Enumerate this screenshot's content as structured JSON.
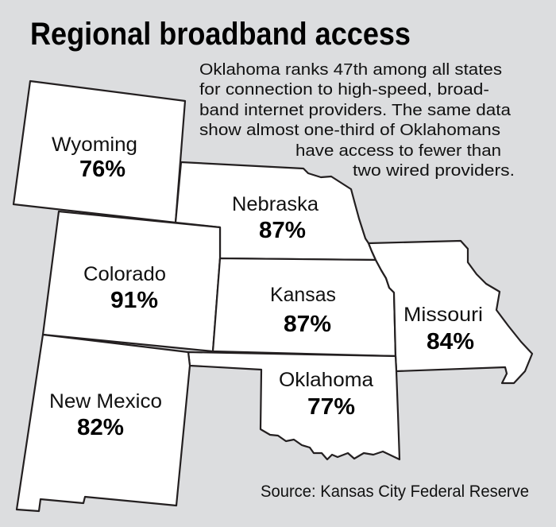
{
  "title": "Regional broadband access",
  "intro_lines": [
    "Oklahoma ranks 47th among all states",
    "for connection to high-speed, broad-",
    "band internet providers. The same data",
    "show almost one-third of Oklahomans",
    "have access to fewer than",
    "two wired providers."
  ],
  "states": {
    "wyoming": {
      "name": "Wyoming",
      "value": "76%"
    },
    "nebraska": {
      "name": "Nebraska",
      "value": "87%"
    },
    "colorado": {
      "name": "Colorado",
      "value": "91%"
    },
    "kansas": {
      "name": "Kansas",
      "value": "87%"
    },
    "missouri": {
      "name": "Missouri",
      "value": "84%"
    },
    "oklahoma": {
      "name": "Oklahoma",
      "value": "77%"
    },
    "new_mexico": {
      "name": "New Mexico",
      "value": "82%"
    }
  },
  "source": "Source: Kansas City Federal Reserve",
  "colors": {
    "background": "#dcdddf",
    "state_fill": "#ffffff",
    "outline": "#231f20"
  }
}
